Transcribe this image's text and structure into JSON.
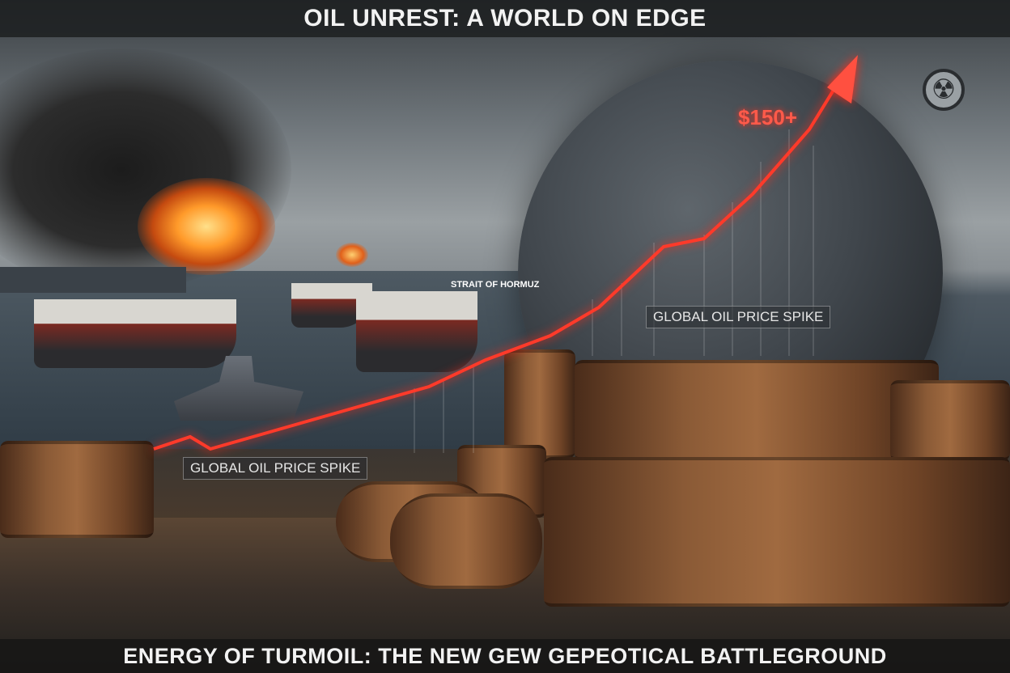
{
  "header": {
    "title": "OIL UNREST: A WORLD ON EDGE"
  },
  "footer": {
    "subtitle": "ENERGY OF TURMOIL: THE NEW GEW GEPEOTICAL BATTLEGROUND"
  },
  "labels": {
    "strait": "STRAIT OF HORMUZ",
    "price": "$150+",
    "spike_right": "GLOBAL OIL PRICE SPIKE",
    "spike_left": "GLOBAL OIL PRICE SPIKE"
  },
  "icons": {
    "hazard": "radiation-icon"
  },
  "colors": {
    "trend_line": "#ff3a2a",
    "banner": "#1c1e20"
  }
}
